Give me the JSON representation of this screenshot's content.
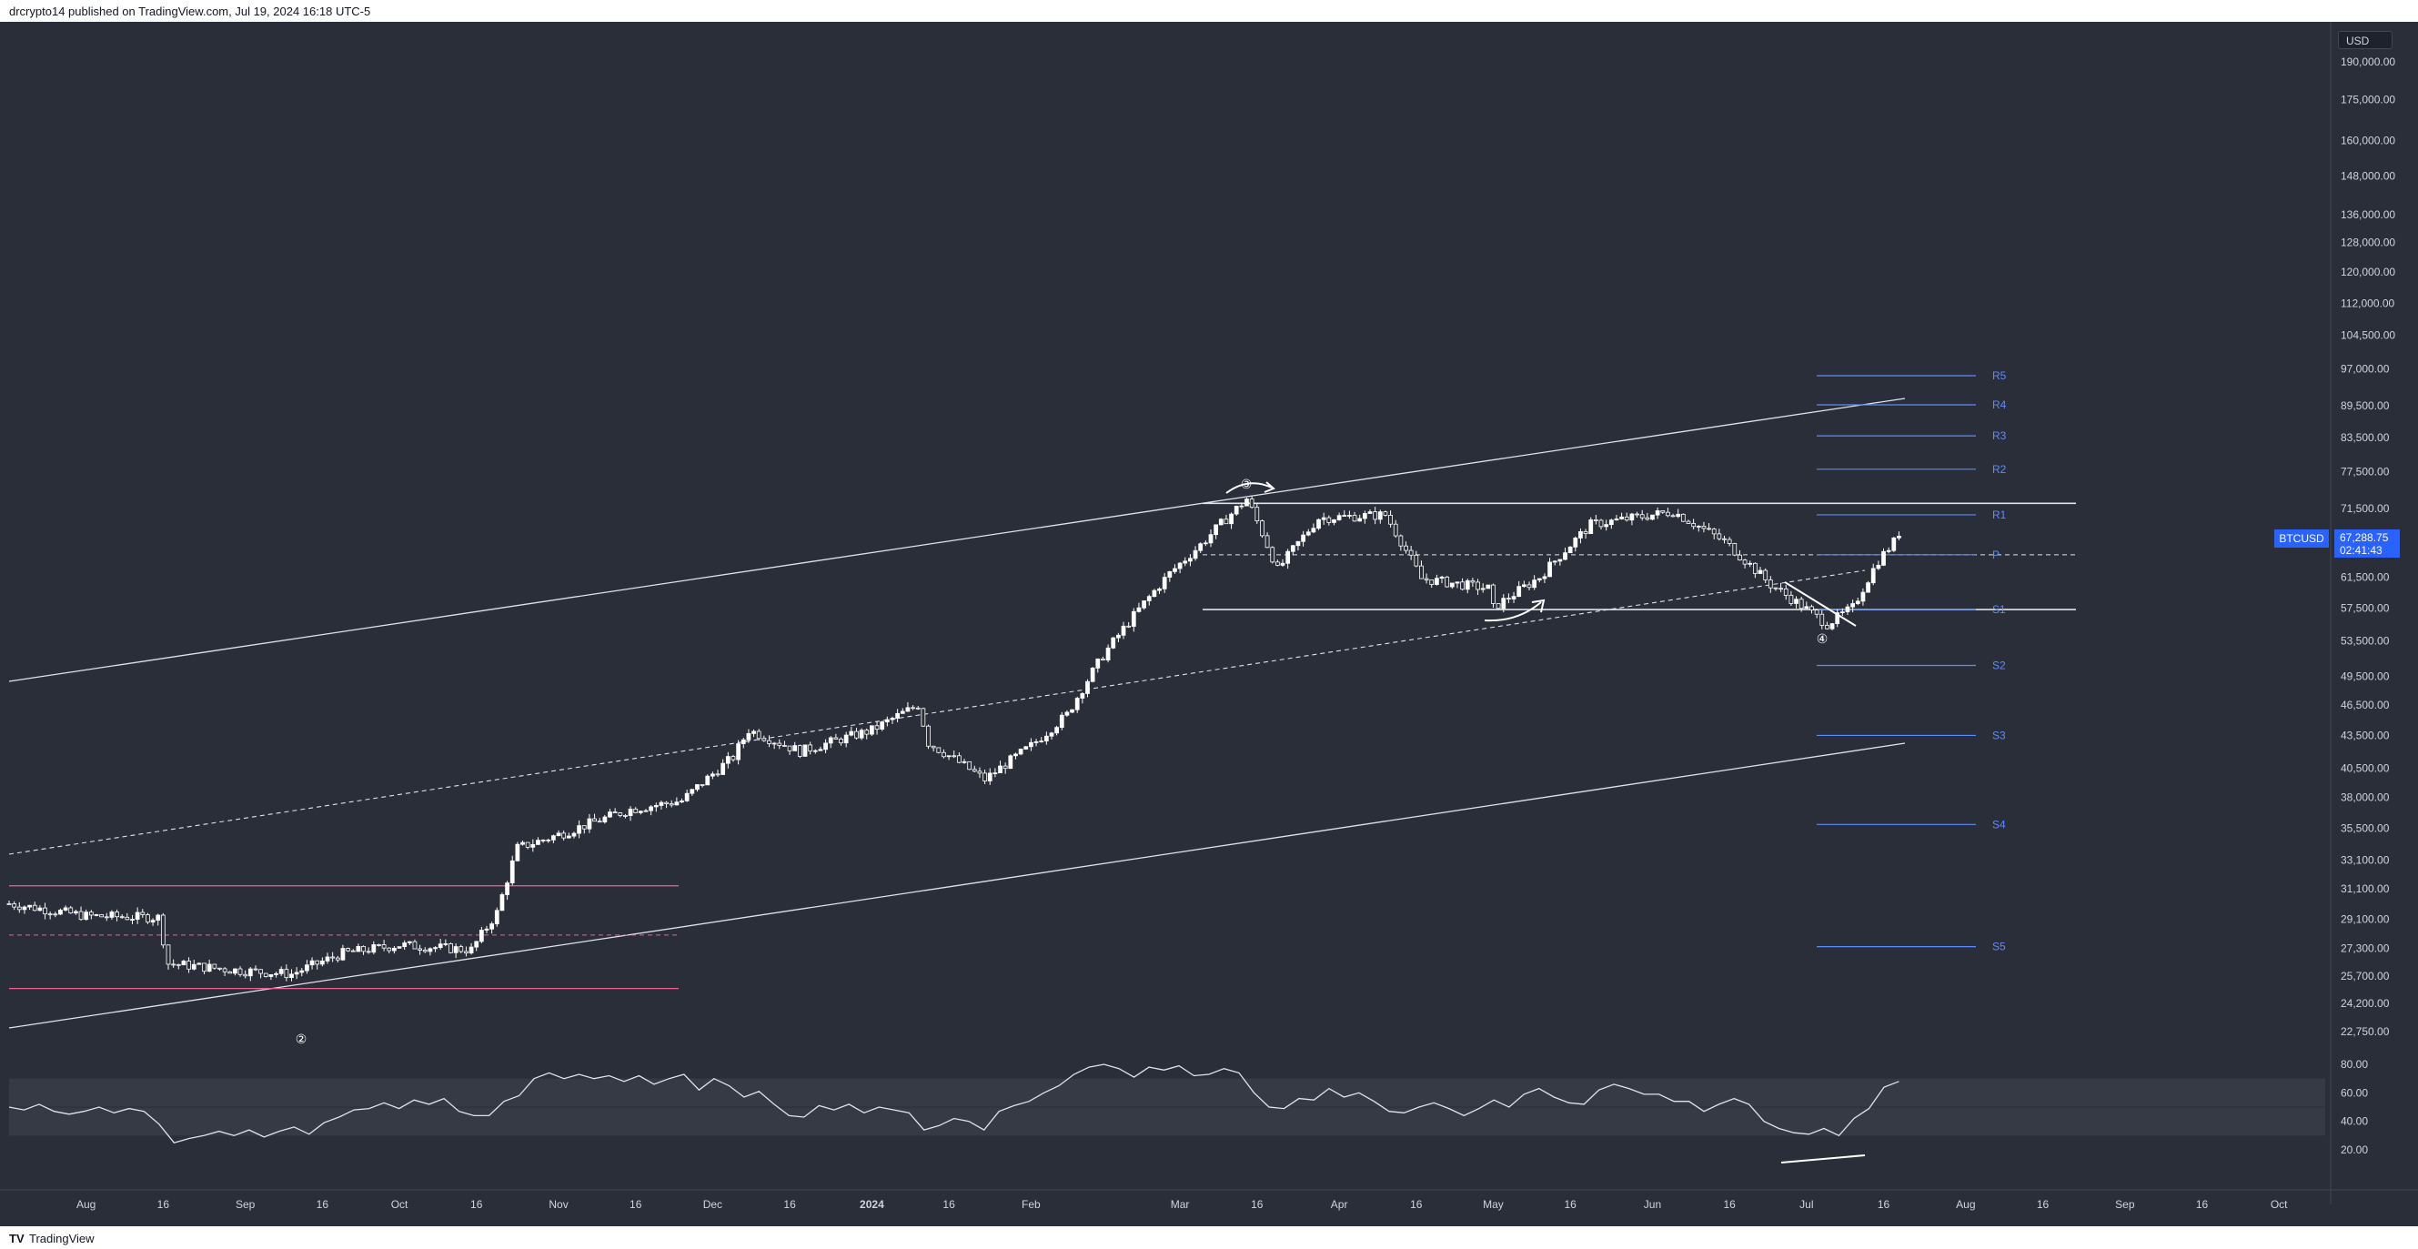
{
  "header": {
    "text": "drcrypto14 published on TradingView.com, Jul 19, 2024 16:18 UTC-5"
  },
  "footer": {
    "logo_icon": "tradingview-logo-icon",
    "brand": "TradingView"
  },
  "currency": "USD",
  "symbol": "BTCUSD",
  "last_price": "67,288.75",
  "countdown": "02:41:43",
  "colors": {
    "background": "#2a2e39",
    "candle": "#ffffff",
    "pivot": "#5b8cff",
    "range_box": "#f06292",
    "accent": "#2962ff"
  },
  "chart_data": {
    "type": "candlestick",
    "symbol": "BTCUSD",
    "y_scale": "log",
    "price_axis_ticks": [
      "190,000.00",
      "175,000.00",
      "160,000.00",
      "148,000.00",
      "136,000.00",
      "128,000.00",
      "120,000.00",
      "112,000.00",
      "104,500.00",
      "97,000.00",
      "89,500.00",
      "83,500.00",
      "77,500.00",
      "71,500.00",
      "65,500.00",
      "61,500.00",
      "57,500.00",
      "53,500.00",
      "49,500.00",
      "46,500.00",
      "43,500.00",
      "40,500.00",
      "38,000.00",
      "35,500.00",
      "33,100.00",
      "31,100.00",
      "29,100.00",
      "27,300.00",
      "25,700.00",
      "24,200.00",
      "22,750.00"
    ],
    "time_axis_ticks": [
      "Aug",
      "16",
      "Sep",
      "16",
      "Oct",
      "16",
      "Nov",
      "16",
      "Dec",
      "16",
      "2024",
      "16",
      "Feb",
      "Mar",
      "16",
      "Apr",
      "16",
      "May",
      "16",
      "Jun",
      "16",
      "Jul",
      "16",
      "Aug",
      "16",
      "Sep",
      "16",
      "Oct"
    ],
    "x_range": [
      "2023-07-17",
      "2024-10-10"
    ],
    "closes": [
      [
        "2023-07-17",
        30100
      ],
      [
        "2023-08-01",
        29300
      ],
      [
        "2023-08-15",
        29200
      ],
      [
        "2023-08-17",
        26400
      ],
      [
        "2023-08-31",
        26000
      ],
      [
        "2023-09-10",
        25800
      ],
      [
        "2023-09-20",
        27000
      ],
      [
        "2023-10-01",
        27500
      ],
      [
        "2023-10-15",
        27200
      ],
      [
        "2023-10-20",
        29500
      ],
      [
        "2023-10-24",
        34000
      ],
      [
        "2023-11-01",
        35000
      ],
      [
        "2023-11-15",
        37000
      ],
      [
        "2023-11-25",
        37700
      ],
      [
        "2023-12-05",
        41500
      ],
      [
        "2023-12-08",
        44000
      ],
      [
        "2023-12-18",
        42000
      ],
      [
        "2024-01-01",
        44000
      ],
      [
        "2024-01-10",
        46500
      ],
      [
        "2024-01-12",
        42800
      ],
      [
        "2024-01-23",
        39500
      ],
      [
        "2024-02-01",
        42500
      ],
      [
        "2024-02-08",
        45500
      ],
      [
        "2024-02-15",
        51800
      ],
      [
        "2024-02-28",
        62000
      ],
      [
        "2024-03-05",
        66000
      ],
      [
        "2024-03-14",
        73000
      ],
      [
        "2024-03-20",
        62500
      ],
      [
        "2024-03-28",
        70000
      ],
      [
        "2024-04-10",
        70500
      ],
      [
        "2024-04-17",
        61300
      ],
      [
        "2024-04-30",
        60000
      ],
      [
        "2024-05-01",
        57500
      ],
      [
        "2024-05-10",
        61500
      ],
      [
        "2024-05-20",
        69000
      ],
      [
        "2024-06-05",
        71000
      ],
      [
        "2024-06-15",
        66500
      ],
      [
        "2024-06-24",
        60500
      ],
      [
        "2024-07-05",
        55500
      ],
      [
        "2024-07-10",
        57500
      ],
      [
        "2024-07-15",
        63800
      ],
      [
        "2024-07-19",
        67288.75
      ]
    ],
    "pivots": {
      "labels": [
        "R5",
        "R4",
        "R3",
        "R2",
        "R1",
        "P",
        "S1",
        "S2",
        "S3",
        "S4",
        "S5"
      ],
      "prices": [
        95600,
        89700,
        83800,
        77900,
        70500,
        64600,
        57300,
        50700,
        43500,
        35800,
        27400
      ]
    },
    "horizontal_lines": {
      "resistance": 72300,
      "support": 57300,
      "range_top": 31300,
      "range_mid": 28100,
      "range_bottom": 25000
    },
    "annotations": [
      "③",
      "④",
      "②"
    ],
    "rsi": {
      "ticks": [
        "80.00",
        "60.00",
        "40.00",
        "20.00"
      ],
      "band": [
        30,
        70
      ],
      "values": [
        50,
        48,
        52,
        47,
        45,
        47,
        50,
        46,
        49,
        47,
        38,
        25,
        28,
        30,
        33,
        30,
        34,
        29,
        33,
        36,
        31,
        39,
        43,
        48,
        49,
        53,
        49,
        55,
        52,
        56,
        47,
        44,
        44,
        54,
        58,
        70,
        74,
        70,
        73,
        70,
        72,
        68,
        72,
        66,
        70,
        73,
        62,
        70,
        65,
        57,
        61,
        52,
        44,
        43,
        51,
        48,
        52,
        46,
        50,
        48,
        46,
        34,
        37,
        42,
        40,
        34,
        47,
        51,
        54,
        60,
        65,
        73,
        78,
        80,
        77,
        71,
        78,
        76,
        79,
        72,
        73,
        77,
        74,
        60,
        50,
        49,
        56,
        55,
        63,
        57,
        60,
        54,
        47,
        46,
        50,
        53,
        49,
        44,
        49,
        55,
        50,
        59,
        63,
        57,
        53,
        52,
        62,
        66,
        63,
        59,
        59,
        54,
        54,
        47,
        52,
        56,
        52,
        40,
        35,
        32,
        31,
        35,
        30,
        42,
        49,
        64,
        68
      ]
    }
  }
}
